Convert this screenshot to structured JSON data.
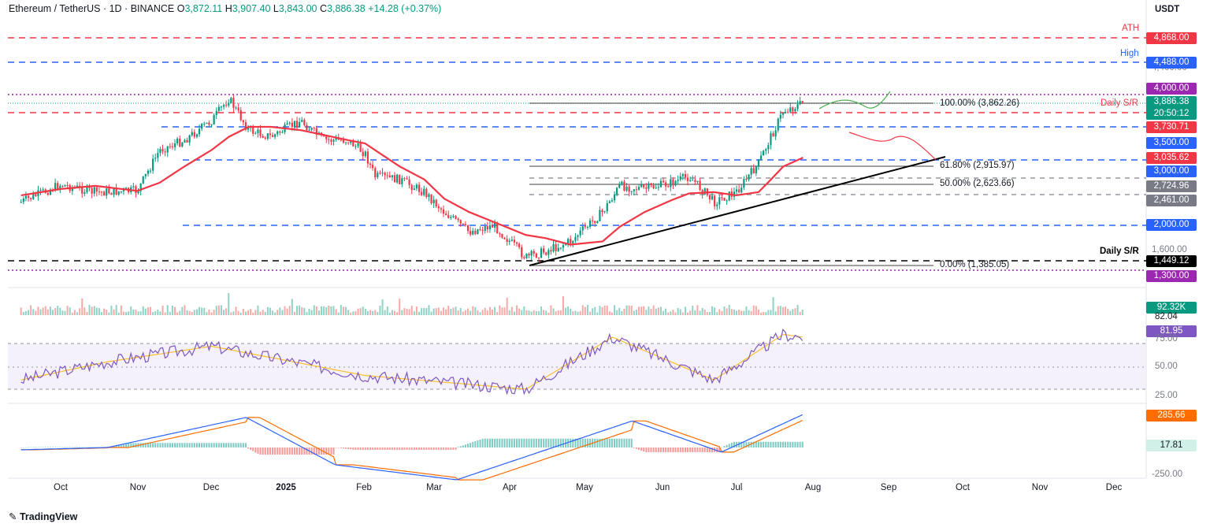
{
  "header": {
    "symbol": "Ethereum / TetherUS · 1D · BINANCE",
    "open_label": "O",
    "open": "3,872.11",
    "high_label": "H",
    "high": "3,907.40",
    "low_label": "L",
    "low": "3,843.00",
    "close_label": "C",
    "close": "3,886.38",
    "change": "+14.28 (+0.37%)",
    "currency": "USDT"
  },
  "levels": {
    "ath": {
      "label": "ATH",
      "value": "4,868.00",
      "color": "#f23645"
    },
    "high": {
      "label": "High",
      "value": "4,488.00",
      "color": "#2962ff"
    },
    "k4000": {
      "value": "4,000.00",
      "color": "#9c27b0"
    },
    "last": {
      "value": "3,886.38",
      "countdown": "20:50:12",
      "color": "#089981"
    },
    "r3730": {
      "value": "3,730.71",
      "color": "#f23645"
    },
    "s3500": {
      "value": "3,500.00",
      "color": "#2962ff"
    },
    "ma": {
      "value": "3,035.62",
      "color": "#f23645"
    },
    "s3000": {
      "value": "3,000.00",
      "color": "#2962ff"
    },
    "g2724": {
      "value": "2,724.96",
      "color": "#787b86"
    },
    "g2461": {
      "value": "2,461.00",
      "color": "#787b86"
    },
    "s2000": {
      "value": "2,000.00",
      "color": "#2962ff"
    },
    "dsr_low": {
      "label": "Daily S/R",
      "value": "1,449.12",
      "color": "#000000"
    },
    "k1300": {
      "value": "1,300.00",
      "color": "#9c27b0"
    },
    "daily_sr_top": {
      "label": "Daily S/R"
    },
    "axis_1600": "1,600.00",
    "axis_4400": "4,400.00"
  },
  "fib": {
    "f100": "100.00% (3,862.26)",
    "f618": "61.80% (2,915.97)",
    "f50": "50.00% (2,623.66)",
    "f0": "0.00% (1,385.05)"
  },
  "volume": {
    "value": "92.32K",
    "color": "#089981"
  },
  "rsi": {
    "value": "81.95",
    "signal": "82.04",
    "color": "#7e57c2",
    "ticks": [
      "75.00",
      "50.00",
      "25.00"
    ]
  },
  "macd": {
    "value": "285.66",
    "hist": "17.81",
    "color": "#ff6d00",
    "tick": "-250.00"
  },
  "months": [
    "Oct",
    "Nov",
    "Dec",
    "2025",
    "Feb",
    "Mar",
    "Apr",
    "May",
    "Jun",
    "Jul",
    "Aug",
    "Sep",
    "Oct",
    "Nov",
    "Dec"
  ],
  "brand": "TradingView",
  "chart_data": {
    "type": "candlestick",
    "title": "Ethereum / TetherUS · 1D · BINANCE",
    "unit": "USDT",
    "x": [
      "2024-09-15",
      "2024-10-01",
      "2024-10-15",
      "2024-11-01",
      "2024-11-10",
      "2024-11-20",
      "2024-12-01",
      "2024-12-08",
      "2024-12-16",
      "2024-12-25",
      "2025-01-06",
      "2025-01-15",
      "2025-01-25",
      "2025-02-01",
      "2025-02-05",
      "2025-02-15",
      "2025-02-25",
      "2025-03-05",
      "2025-03-15",
      "2025-03-25",
      "2025-04-07",
      "2025-04-15",
      "2025-04-25",
      "2025-05-08",
      "2025-05-15",
      "2025-05-25",
      "2025-06-05",
      "2025-06-12",
      "2025-06-22",
      "2025-07-01",
      "2025-07-10",
      "2025-07-15",
      "2025-07-20",
      "2025-07-28"
    ],
    "close": [
      2350,
      2620,
      2500,
      2520,
      3150,
      3300,
      3600,
      3950,
      3450,
      3350,
      3600,
      3300,
      3300,
      3100,
      2750,
      2700,
      2500,
      2200,
      1900,
      2000,
      1500,
      1600,
      1750,
      2200,
      2600,
      2550,
      2650,
      2750,
      2350,
      2500,
      2950,
      3350,
      3750,
      3886
    ],
    "ma50": [
      2450,
      2550,
      2600,
      2520,
      2650,
      2900,
      3150,
      3350,
      3500,
      3500,
      3450,
      3380,
      3300,
      3250,
      3150,
      2900,
      2700,
      2400,
      2200,
      2050,
      1850,
      1800,
      1700,
      1750,
      1980,
      2200,
      2380,
      2480,
      2500,
      2450,
      2500,
      2700,
      2900,
      3035
    ],
    "levels": {
      "ath": 4868,
      "high": 4488,
      "k4000": 4000,
      "r3730": 3730.71,
      "s3500": 3500,
      "s3000": 3000,
      "g2724": 2724.96,
      "g2461": 2461,
      "s2000": 2000,
      "dsr_low": 1449.12,
      "k1300": 1300
    },
    "fibonacci": [
      {
        "level": 1.0,
        "price": 3862.26
      },
      {
        "level": 0.618,
        "price": 2915.97
      },
      {
        "level": 0.5,
        "price": 2623.66
      },
      {
        "level": 0.0,
        "price": 1385.05
      }
    ],
    "rsi": {
      "x": [
        "2024-09-15",
        "2024-10-20",
        "2024-12-01",
        "2025-02-01",
        "2025-04-07",
        "2025-05-12",
        "2025-06-22",
        "2025-07-20",
        "2025-07-28"
      ],
      "values": [
        35,
        55,
        72,
        40,
        25,
        82,
        35,
        85,
        81.95
      ],
      "ylim": [
        0,
        100
      ]
    },
    "macd": {
      "x": [
        "2024-09-15",
        "2024-10-20",
        "2024-12-15",
        "2025-01-20",
        "2025-03-10",
        "2025-05-20",
        "2025-06-25",
        "2025-07-28"
      ],
      "values": [
        -20,
        0,
        260,
        -150,
        -280,
        230,
        -40,
        285.66
      ]
    },
    "ylim": [
      1200,
      5000
    ]
  }
}
